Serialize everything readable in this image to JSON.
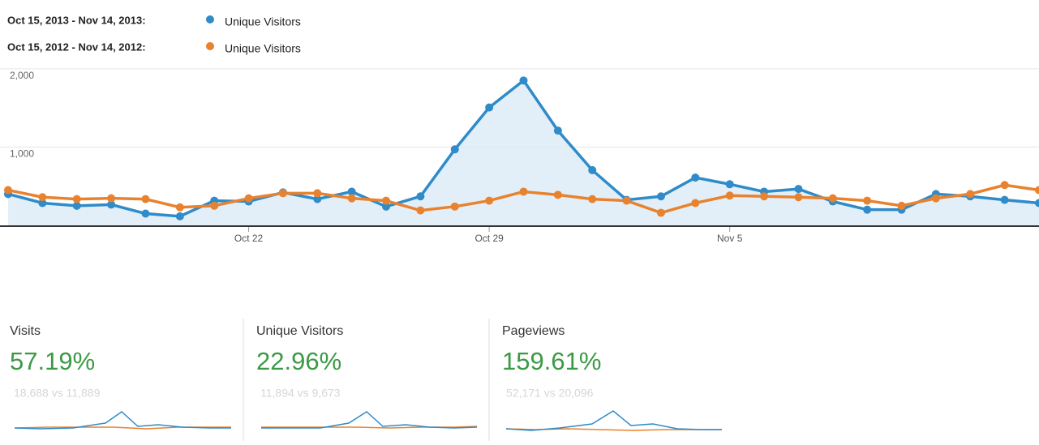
{
  "chart_data": {
    "type": "line",
    "categories": [
      null,
      null,
      null,
      null,
      null,
      null,
      null,
      "Oct 22",
      null,
      null,
      null,
      null,
      null,
      null,
      "Oct 29",
      null,
      null,
      null,
      null,
      null,
      null,
      "Nov 5",
      null,
      null,
      null,
      null,
      null,
      null,
      null,
      null,
      null
    ],
    "series": [
      {
        "period": "Oct 15, 2013 - Nov 14, 2013:",
        "name": "Unique Visitors",
        "color": "#2f8bc9",
        "values": [
          400,
          285,
          250,
          265,
          150,
          115,
          315,
          305,
          420,
          335,
          430,
          240,
          370,
          970,
          1505,
          1850,
          1210,
          705,
          325,
          370,
          610,
          525,
          430,
          465,
          305,
          200,
          200,
          400,
          370,
          325,
          285
        ]
      },
      {
        "period": "Oct 15, 2012 - Nov 14, 2012:",
        "name": "Unique Visitors",
        "color": "#e8822e",
        "values": [
          450,
          360,
          335,
          345,
          335,
          230,
          250,
          345,
          410,
          410,
          345,
          315,
          190,
          240,
          315,
          430,
          390,
          335,
          315,
          160,
          285,
          380,
          370,
          360,
          345,
          315,
          250,
          345,
          400,
          515,
          450
        ]
      }
    ],
    "ylim": [
      0,
      2050
    ],
    "yticks": [
      {
        "value": 1000,
        "label": "1,000"
      },
      {
        "value": 2000,
        "label": "2,000"
      }
    ],
    "grid": true,
    "area": true
  },
  "metrics": [
    {
      "label": "Visits",
      "change": "57.19%",
      "comparison": "18,688 vs 11,889"
    },
    {
      "label": "Unique Visitors",
      "change": "22.96%",
      "comparison": "11,894 vs 9,673"
    },
    {
      "label": "Pageviews",
      "change": "159.61%",
      "comparison": "52,171 vs 20,096"
    }
  ]
}
